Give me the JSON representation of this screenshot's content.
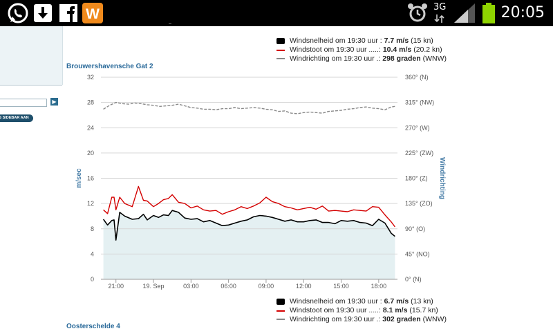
{
  "status_bar": {
    "time": "20:05",
    "network": "3G",
    "icons": [
      "whatsapp-icon",
      "download-icon",
      "facebook-icon",
      "app-w-icon",
      "alarm-icon",
      "signal-icon",
      "battery-icon"
    ],
    "app_badge_letter": "W"
  },
  "sidebar": {
    "search_placeholder": "",
    "toggle_label": "S SIDEBAR AAN"
  },
  "legend_top": {
    "rows": [
      {
        "label": "Windsnelheid om 19:30 uur : ",
        "value": "7.7 m/s",
        "extra": " (15 kn)"
      },
      {
        "label": "Windstoot om 19:30 uur .....: ",
        "value": "10.4 m/s",
        "extra": " (20.2 kn)"
      },
      {
        "label": "Windrichting om 19:30 uur .: ",
        "value": "298 graden",
        "extra": " (WNW)"
      }
    ]
  },
  "station_top": "Brouwershavensche Gat 2",
  "legend_bottom": {
    "rows": [
      {
        "label": "Windsnelheid om 19:30 uur : ",
        "value": "6.7 m/s",
        "extra": " (13 kn)"
      },
      {
        "label": "Windstoot om 19:30 uur .....: ",
        "value": "8.1 m/s",
        "extra": " (15.7 kn)"
      },
      {
        "label": "Windrichting om 19:30 uur .: ",
        "value": "302 graden",
        "extra": " (WNW)"
      }
    ]
  },
  "station_bottom": "Oosterschelde 4",
  "colors": {
    "speed": "#000000",
    "gust": "#d40000",
    "direction": "#888888",
    "area_fill": "#e4f0f2",
    "title": "#2a6a9a"
  },
  "chart_data": {
    "type": "line",
    "ylabel": "m/sec",
    "y2label": "Windrichting",
    "ylim": [
      0,
      32
    ],
    "y_ticks": [
      "0",
      "4",
      "8",
      "12",
      "16",
      "20",
      "24",
      "28",
      "32"
    ],
    "y2lim": [
      0,
      360
    ],
    "y2_ticks": [
      "0° (N)",
      "45° (NO)",
      "90° (O)",
      "135° (ZO)",
      "180° (Z)",
      "225° (ZW)",
      "270° (W)",
      "315° (NW)",
      "360° (N)"
    ],
    "x_ticks": [
      {
        "label": "21:00",
        "hour": 1.0
      },
      {
        "label": "19. Sep",
        "hour": 4.0
      },
      {
        "label": "03:00",
        "hour": 7.0
      },
      {
        "label": "06:00",
        "hour": 10.0
      },
      {
        "label": "09:00",
        "hour": 13.0
      },
      {
        "label": "12:00",
        "hour": 16.0
      },
      {
        "label": "15:00",
        "hour": 19.0
      },
      {
        "label": "18:00",
        "hour": 22.0
      }
    ],
    "x_range_hours": [
      -0.2,
      23.5
    ],
    "grid": true,
    "series": [
      {
        "name": "Windsnelheid",
        "axis": "left",
        "points": [
          [
            0,
            9.5
          ],
          [
            0.33,
            8.6
          ],
          [
            0.67,
            9.3
          ],
          [
            0.85,
            9.4
          ],
          [
            1.0,
            6.2
          ],
          [
            1.3,
            10.6
          ],
          [
            1.7,
            10.0
          ],
          [
            2.3,
            9.5
          ],
          [
            2.8,
            9.6
          ],
          [
            3.2,
            10.3
          ],
          [
            3.5,
            9.4
          ],
          [
            4.0,
            10.1
          ],
          [
            4.4,
            9.8
          ],
          [
            4.8,
            10.2
          ],
          [
            5.2,
            10.1
          ],
          [
            5.5,
            10.9
          ],
          [
            6.0,
            10.6
          ],
          [
            6.5,
            9.7
          ],
          [
            7.0,
            9.5
          ],
          [
            7.5,
            9.6
          ],
          [
            8.0,
            9.1
          ],
          [
            8.5,
            9.3
          ],
          [
            9.0,
            8.9
          ],
          [
            9.5,
            8.5
          ],
          [
            10.0,
            8.6
          ],
          [
            10.5,
            8.9
          ],
          [
            11.0,
            9.2
          ],
          [
            11.5,
            9.4
          ],
          [
            12.0,
            9.9
          ],
          [
            12.5,
            10.1
          ],
          [
            13.0,
            10.0
          ],
          [
            13.5,
            9.8
          ],
          [
            14.0,
            9.5
          ],
          [
            14.5,
            9.2
          ],
          [
            15.0,
            9.4
          ],
          [
            15.5,
            9.1
          ],
          [
            16.0,
            9.1
          ],
          [
            16.5,
            9.3
          ],
          [
            17.0,
            9.4
          ],
          [
            17.5,
            9.0
          ],
          [
            18.0,
            9.0
          ],
          [
            18.5,
            8.8
          ],
          [
            19.0,
            9.3
          ],
          [
            19.5,
            9.2
          ],
          [
            20.0,
            9.3
          ],
          [
            20.5,
            9.0
          ],
          [
            21.0,
            8.9
          ],
          [
            21.5,
            8.5
          ],
          [
            22.0,
            9.5
          ],
          [
            22.5,
            8.9
          ],
          [
            23.0,
            7.3
          ],
          [
            23.3,
            6.8
          ]
        ]
      },
      {
        "name": "Windstoot",
        "axis": "left",
        "points": [
          [
            0,
            11.0
          ],
          [
            0.33,
            10.4
          ],
          [
            0.67,
            13.0
          ],
          [
            0.85,
            13.0
          ],
          [
            1.0,
            11.0
          ],
          [
            1.3,
            13.0
          ],
          [
            1.7,
            12.0
          ],
          [
            2.3,
            11.5
          ],
          [
            2.8,
            14.7
          ],
          [
            3.2,
            12.5
          ],
          [
            3.5,
            12.4
          ],
          [
            4.0,
            11.5
          ],
          [
            4.4,
            12.0
          ],
          [
            4.8,
            12.6
          ],
          [
            5.2,
            12.8
          ],
          [
            5.5,
            13.4
          ],
          [
            6.0,
            12.2
          ],
          [
            6.5,
            12.0
          ],
          [
            7.0,
            11.3
          ],
          [
            7.5,
            11.6
          ],
          [
            8.0,
            11.0
          ],
          [
            8.5,
            10.8
          ],
          [
            9.0,
            10.9
          ],
          [
            9.5,
            10.3
          ],
          [
            10.0,
            10.7
          ],
          [
            10.5,
            11.0
          ],
          [
            11.0,
            11.5
          ],
          [
            11.5,
            11.2
          ],
          [
            12.0,
            11.6
          ],
          [
            12.5,
            12.1
          ],
          [
            13.0,
            13.0
          ],
          [
            13.5,
            12.3
          ],
          [
            14.0,
            12.0
          ],
          [
            14.5,
            11.5
          ],
          [
            15.0,
            11.3
          ],
          [
            15.5,
            11.0
          ],
          [
            16.0,
            11.2
          ],
          [
            16.5,
            11.4
          ],
          [
            17.0,
            11.1
          ],
          [
            17.5,
            11.6
          ],
          [
            18.0,
            10.8
          ],
          [
            18.5,
            10.9
          ],
          [
            19.0,
            10.8
          ],
          [
            19.5,
            10.7
          ],
          [
            20.0,
            11.0
          ],
          [
            20.5,
            10.9
          ],
          [
            21.0,
            10.8
          ],
          [
            21.5,
            11.5
          ],
          [
            22.0,
            11.4
          ],
          [
            22.5,
            10.2
          ],
          [
            23.0,
            9.1
          ],
          [
            23.3,
            8.3
          ]
        ]
      },
      {
        "name": "Windrichting",
        "axis": "right",
        "points": [
          [
            0,
            303
          ],
          [
            0.5,
            310
          ],
          [
            1.0,
            315
          ],
          [
            1.5,
            313
          ],
          [
            2.0,
            312
          ],
          [
            2.5,
            314
          ],
          [
            3.0,
            313
          ],
          [
            3.5,
            311
          ],
          [
            4.0,
            310
          ],
          [
            4.5,
            308
          ],
          [
            5.0,
            309
          ],
          [
            5.5,
            310
          ],
          [
            6.0,
            312
          ],
          [
            6.5,
            309
          ],
          [
            7.0,
            306
          ],
          [
            7.5,
            305
          ],
          [
            8.0,
            303
          ],
          [
            8.5,
            303
          ],
          [
            9.0,
            302
          ],
          [
            9.5,
            304
          ],
          [
            10.0,
            304
          ],
          [
            10.5,
            306
          ],
          [
            11.0,
            304
          ],
          [
            11.5,
            305
          ],
          [
            12.0,
            306
          ],
          [
            12.5,
            305
          ],
          [
            13.0,
            303
          ],
          [
            13.5,
            302
          ],
          [
            14.0,
            299
          ],
          [
            14.5,
            300
          ],
          [
            15.0,
            296
          ],
          [
            15.5,
            295
          ],
          [
            16.0,
            297
          ],
          [
            16.5,
            298
          ],
          [
            17.0,
            297
          ],
          [
            17.5,
            296
          ],
          [
            18.0,
            299
          ],
          [
            18.5,
            300
          ],
          [
            19.0,
            301
          ],
          [
            19.5,
            303
          ],
          [
            20.0,
            304
          ],
          [
            20.5,
            306
          ],
          [
            21.0,
            307
          ],
          [
            21.5,
            305
          ],
          [
            22.0,
            304
          ],
          [
            22.5,
            302
          ],
          [
            23.0,
            307
          ],
          [
            23.3,
            308
          ]
        ]
      }
    ]
  }
}
